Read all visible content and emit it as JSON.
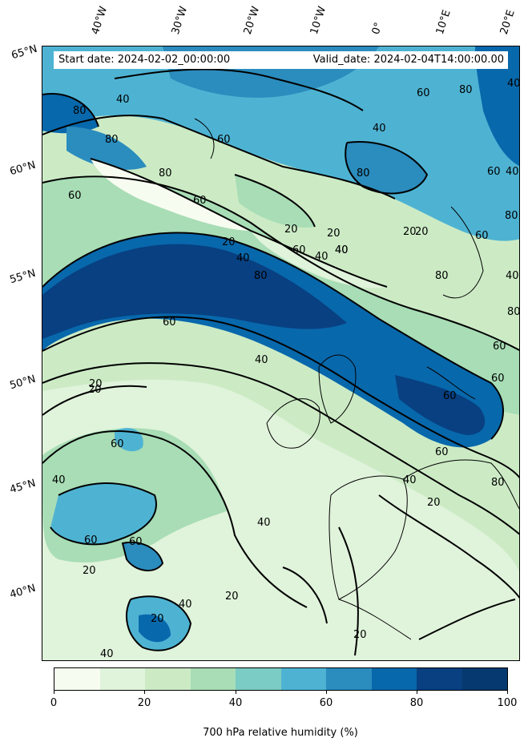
{
  "header": {
    "start_date": "Start date: 2024-02-02_00:00:00",
    "valid_date": "Valid_date: 2024-02-04T14:00:00.00"
  },
  "longitude_labels": [
    "40°W",
    "30°W",
    "20°W",
    "10°W",
    "0°",
    "10°E",
    "20°E"
  ],
  "latitude_labels": [
    "65°N",
    "60°N",
    "55°N",
    "50°N",
    "45°N",
    "40°N"
  ],
  "contour_labels": [
    "80",
    "40",
    "60",
    "80",
    "60",
    "40",
    "60",
    "80",
    "60",
    "80",
    "40",
    "60",
    "80",
    "20",
    "20",
    "40",
    "20",
    "60",
    "40",
    "80",
    "40",
    "60",
    "20",
    "40",
    "80",
    "60",
    "20",
    "80",
    "40",
    "60",
    "40",
    "60",
    "80",
    "40",
    "20",
    "60",
    "20",
    "60",
    "40",
    "20",
    "40",
    "60",
    "60",
    "20",
    "40",
    "40",
    "20",
    "20",
    "60",
    "20",
    "80",
    "40"
  ],
  "colorbar": {
    "label": "700 hPa relative humidity (%)",
    "ticks": [
      "0",
      "20",
      "40",
      "60",
      "80",
      "100"
    ],
    "colors": [
      "#f7fcf0",
      "#e0f3db",
      "#ccebc5",
      "#a8ddb5",
      "#7bccc4",
      "#4eb3d3",
      "#2b8cbe",
      "#0868ac",
      "#084081",
      "#06396f"
    ]
  },
  "fills": {
    "c10": "#e0f3db",
    "c20": "#ccebc5",
    "c30": "#a8ddb5",
    "c40": "#7bccc4",
    "c50": "#4eb3d3",
    "c60": "#2b8cbe",
    "c70": "#0868ac",
    "c80": "#084081",
    "c90": "#06396f",
    "c0": "#f7fcf0"
  }
}
